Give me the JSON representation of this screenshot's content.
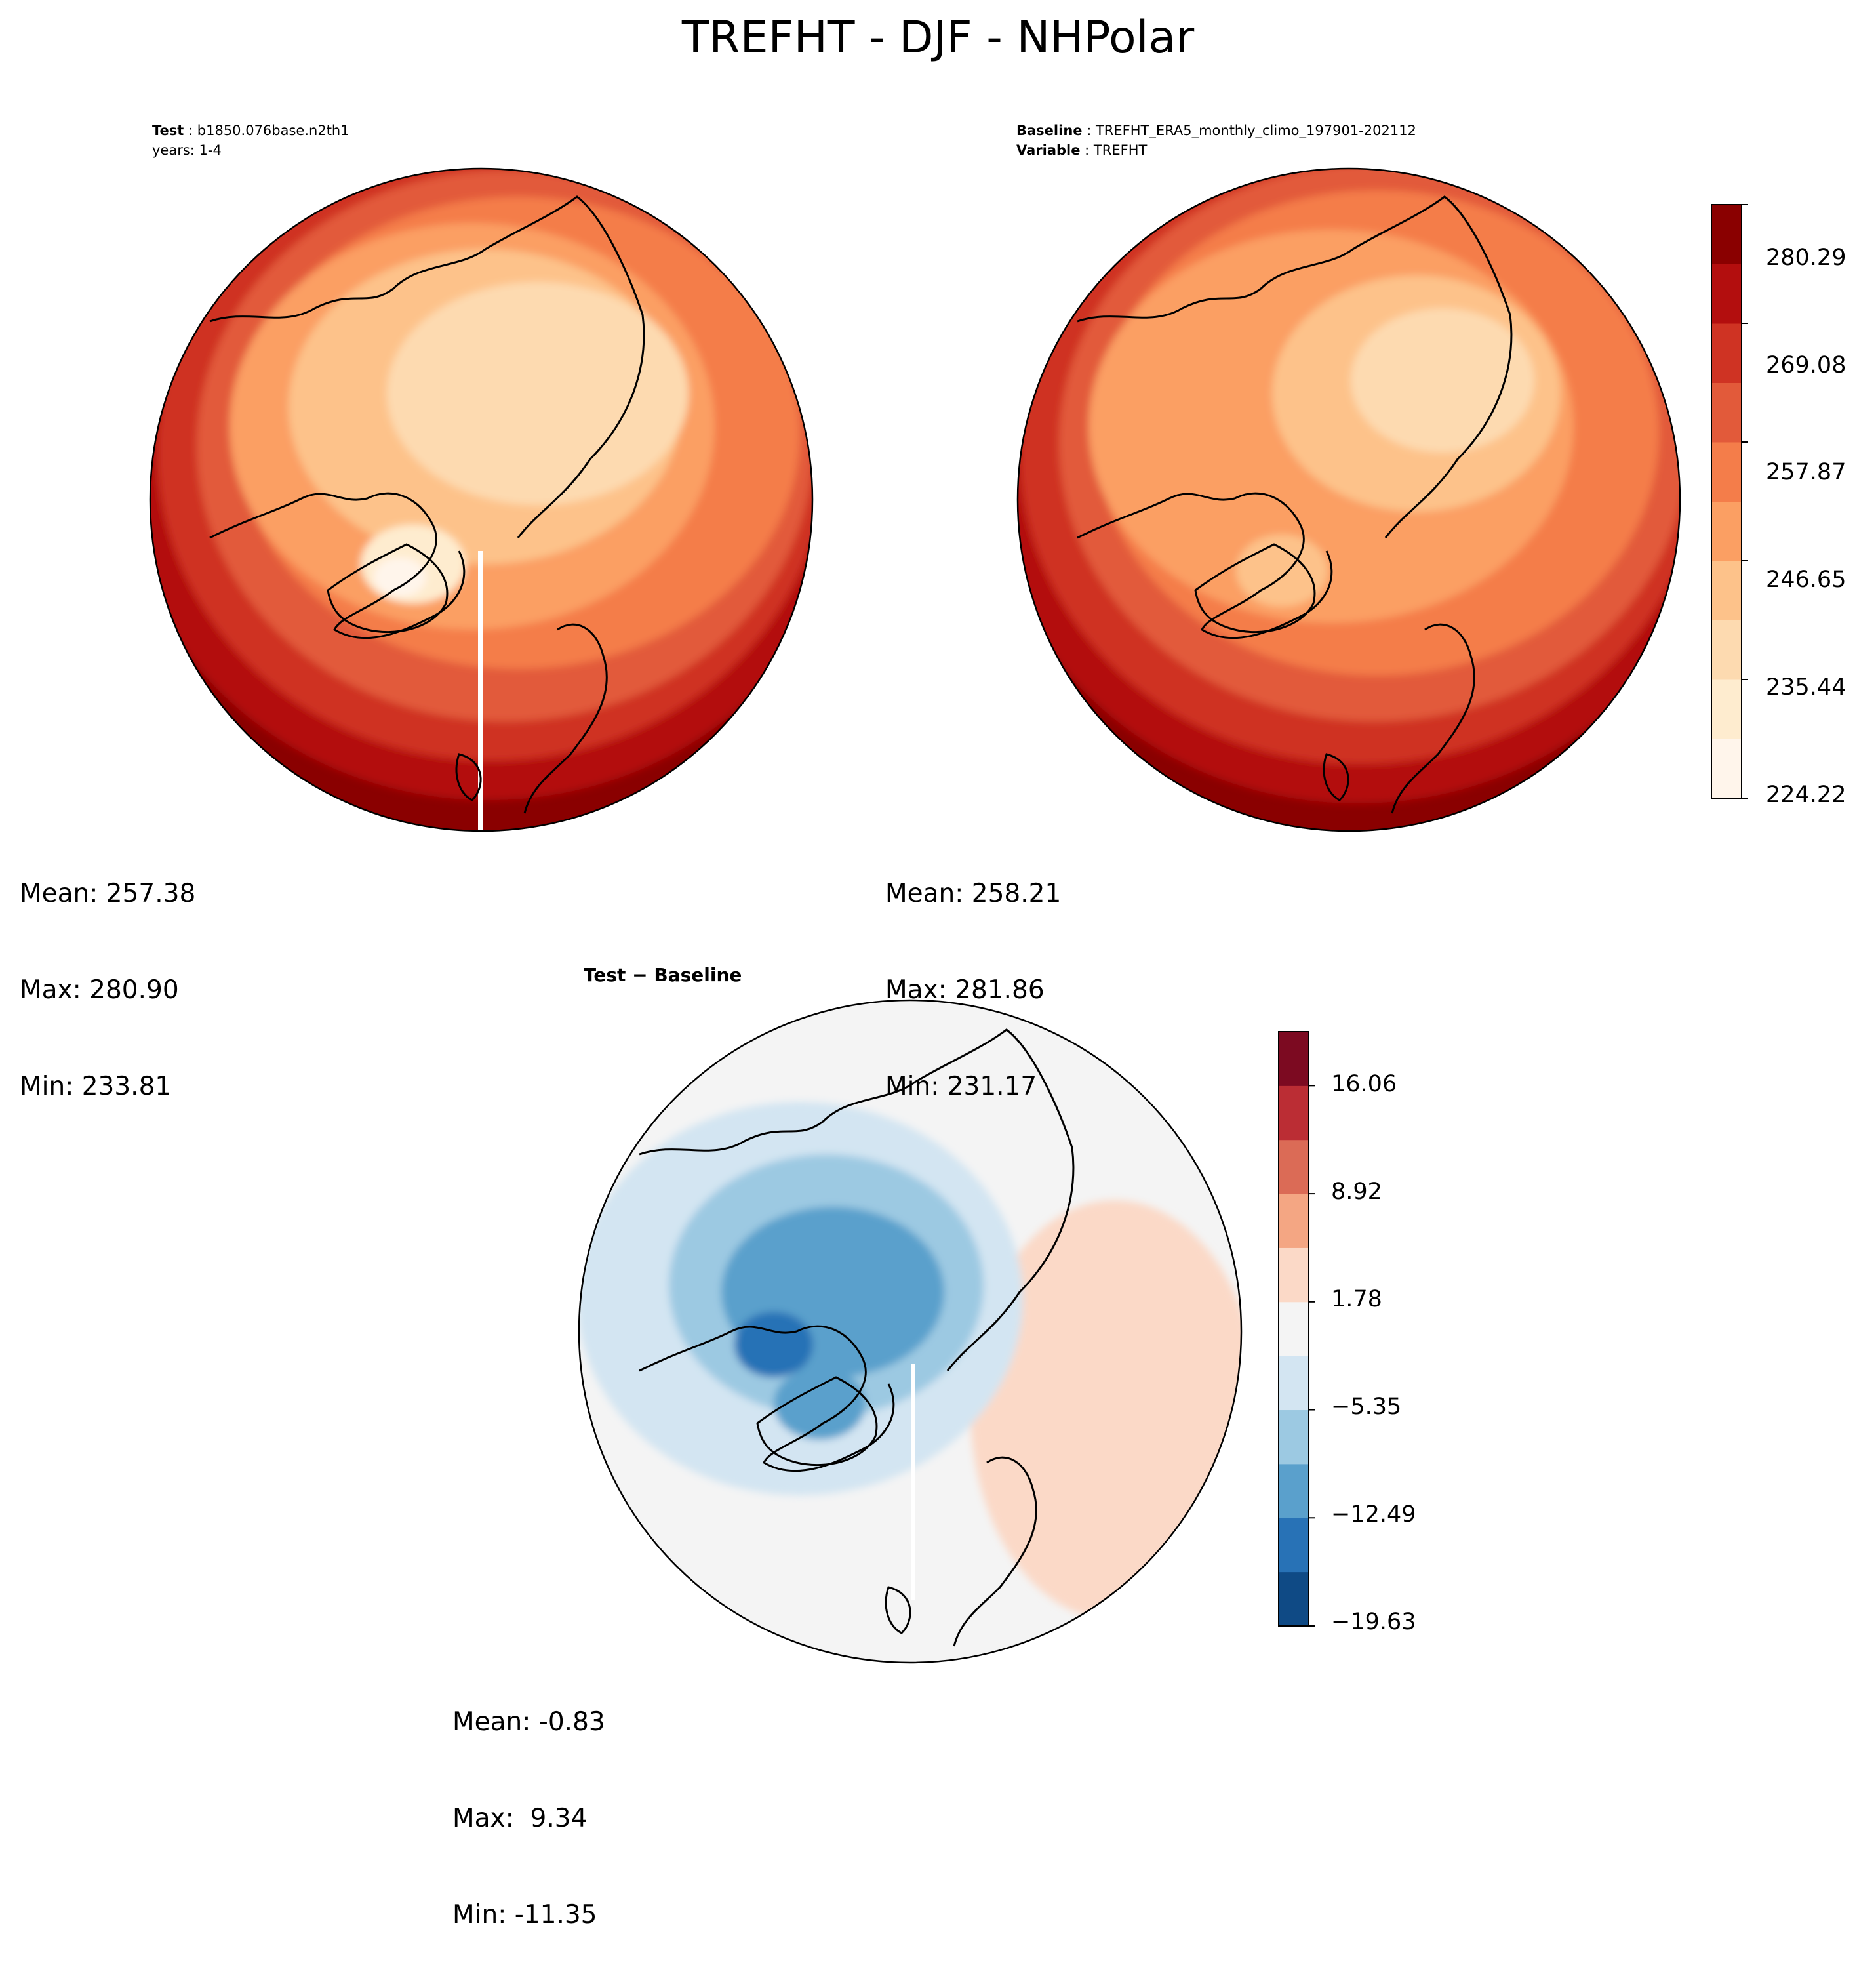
{
  "title": "TREFHT - DJF - NHPolar",
  "panels": {
    "test": {
      "header_key": "Test",
      "header_value": "b1850.076base.n2th1",
      "header_line2": "years: 1-4",
      "stats": {
        "mean": "Mean: 257.38",
        "max": "Max: 280.90",
        "min": "Min: 233.81"
      }
    },
    "baseline": {
      "header_key": "Baseline",
      "header_value": "TREFHT_ERA5_monthly_climo_197901-202112",
      "header_key2": "Variable",
      "header_value2": "TREFHT",
      "stats": {
        "mean": "Mean: 258.21",
        "max": "Max: 281.86",
        "min": "Min: 231.17"
      }
    },
    "diff": {
      "header": "Test − Baseline",
      "stats": {
        "mean": "Mean: -0.83",
        "max": "Max:  9.34",
        "min": "Min: -11.35"
      }
    }
  },
  "colorbars": {
    "main": {
      "colormap": "OrRd-like (Reds)",
      "colors": [
        "#fff5eb",
        "#feeccf",
        "#fddab0",
        "#fdc28a",
        "#fb9f63",
        "#f47d4a",
        "#e25a3a",
        "#cf3323",
        "#b30e0e",
        "#8a0000"
      ],
      "ticks": [
        "280.29",
        "269.08",
        "257.87",
        "246.65",
        "235.44",
        "224.22"
      ]
    },
    "diff": {
      "colormap": "RdBu_r",
      "colors": [
        "#0f4a85",
        "#2872b6",
        "#5aa0cc",
        "#9cc9e2",
        "#d3e5f2",
        "#f4f4f4",
        "#fbd9c7",
        "#f4a683",
        "#db6b56",
        "#bb2d34",
        "#7c0a21"
      ],
      "ticks": [
        "16.06",
        "8.92",
        "1.78",
        "−5.35",
        "−12.49",
        "−19.63"
      ]
    }
  }
}
